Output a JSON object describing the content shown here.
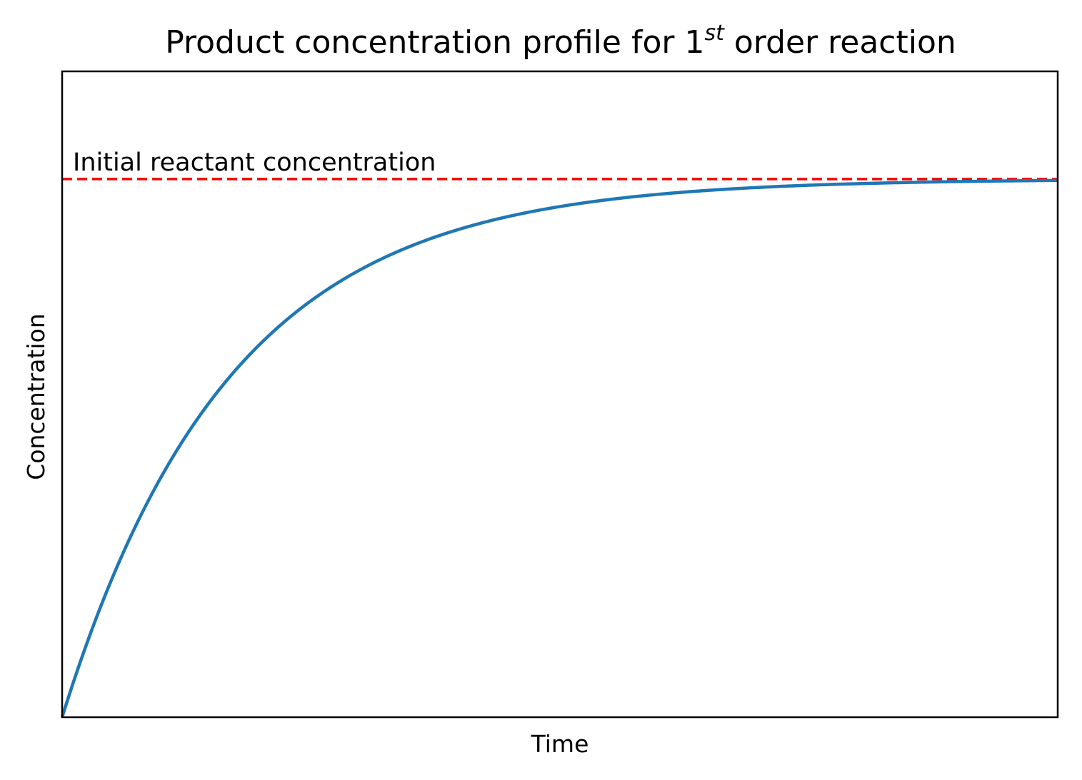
{
  "chart_data": {
    "type": "line",
    "title": {
      "prefix": "Product concentration profile for 1",
      "superscript": "st",
      "suffix": " order reaction"
    },
    "xlabel": "Time",
    "ylabel": "Concentration",
    "x_ticks_shown": false,
    "y_ticks_shown": false,
    "grid": false,
    "xlim": [
      0,
      10
    ],
    "ylim": [
      0,
      1.2
    ],
    "series": [
      {
        "kind": "first-order product curve",
        "color": "#1f77b4",
        "x": [
          0,
          0.5,
          1,
          1.5,
          2,
          2.5,
          3,
          3.5,
          4,
          4.5,
          5,
          5.5,
          6,
          6.5,
          7,
          7.5,
          8,
          8.5,
          9,
          9.5,
          10
        ],
        "y": [
          0,
          0.259,
          0.451,
          0.593,
          0.699,
          0.777,
          0.835,
          0.878,
          0.909,
          0.933,
          0.95,
          0.963,
          0.973,
          0.98,
          0.985,
          0.989,
          0.992,
          0.994,
          0.995,
          0.996,
          0.997
        ]
      }
    ],
    "reference_line": {
      "y": 1.0,
      "style": "dashed",
      "color": "#ff0000",
      "label": "Initial reactant concentration"
    }
  }
}
